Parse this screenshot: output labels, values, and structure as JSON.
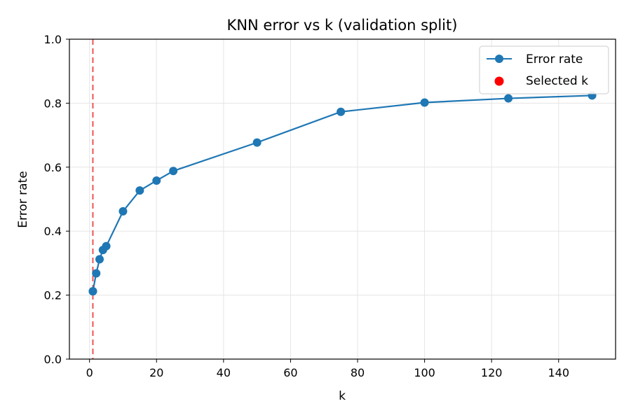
{
  "chart_data": {
    "type": "line",
    "title": "KNN error vs k (validation split)",
    "xlabel": "k",
    "ylabel": "Error rate",
    "xlim": [
      -6,
      157
    ],
    "ylim": [
      0.0,
      1.0
    ],
    "xticks": [
      0,
      20,
      40,
      60,
      80,
      100,
      120,
      140
    ],
    "yticks": [
      0.0,
      0.2,
      0.4,
      0.6,
      0.8,
      1.0
    ],
    "ytick_labels": [
      "0.0",
      "0.2",
      "0.4",
      "0.6",
      "0.8",
      "1.0"
    ],
    "grid": true,
    "legend_position": "top-right",
    "series": [
      {
        "name": "Error rate",
        "color": "#1f77b4",
        "marker": "circle",
        "x": [
          1,
          2,
          3,
          4,
          5,
          10,
          15,
          20,
          25,
          50,
          75,
          100,
          125,
          150
        ],
        "y": [
          0.212,
          0.268,
          0.312,
          0.341,
          0.353,
          0.462,
          0.527,
          0.558,
          0.588,
          0.677,
          0.773,
          0.802,
          0.815,
          0.824
        ]
      }
    ],
    "selected": {
      "name": "Selected k",
      "k": 1,
      "y": 0.212,
      "color": "#ff0000",
      "line_color": "#ee5555"
    }
  }
}
